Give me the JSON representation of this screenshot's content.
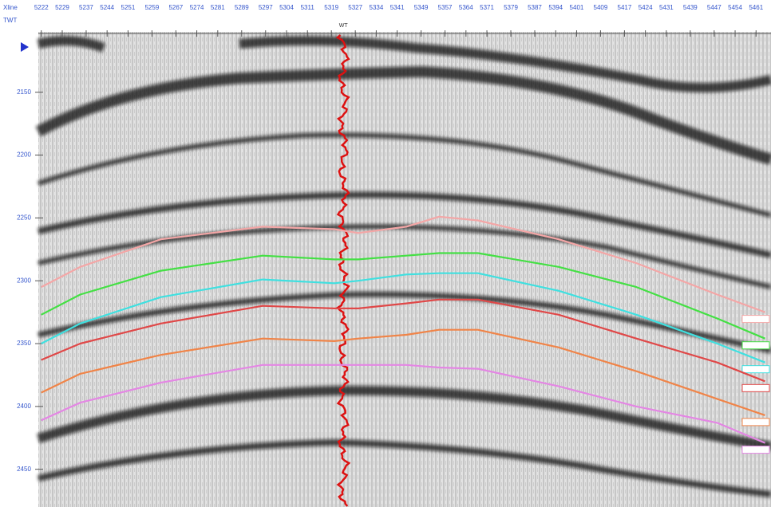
{
  "chart_data": {
    "type": "line",
    "x_label": "Xline",
    "y_label": "TWT",
    "well_label": "WT",
    "well_x": 5323,
    "xlim": [
      5221,
      5466
    ],
    "xticks": [
      5222,
      5229,
      5237,
      5244,
      5251,
      5259,
      5267,
      5274,
      5281,
      5289,
      5297,
      5304,
      5311,
      5319,
      5327,
      5334,
      5341,
      5349,
      5357,
      5364,
      5371,
      5379,
      5387,
      5394,
      5401,
      5409,
      5417,
      5424,
      5431,
      5439,
      5447,
      5454,
      5461
    ],
    "ylim": [
      2102,
      2480
    ],
    "y_reversed": true,
    "yticks": [
      2150,
      2200,
      2250,
      2300,
      2350,
      2400,
      2450
    ],
    "x": [
      5222,
      5235,
      5262,
      5296,
      5320,
      5328,
      5344,
      5355,
      5368,
      5395,
      5421,
      5448,
      5464
    ],
    "series": [
      {
        "color": "#f4a6a6",
        "values": [
          2305,
          2289,
          2267,
          2257,
          2259,
          2262,
          2257,
          2249,
          2252,
          2267,
          2286,
          2311,
          2325
        ]
      },
      {
        "color": "#44e044",
        "values": [
          2327,
          2311,
          2292,
          2280,
          2283,
          2283,
          2280,
          2278,
          2278,
          2289,
          2305,
          2330,
          2346
        ]
      },
      {
        "color": "#3fe0e0",
        "values": [
          2350,
          2334,
          2313,
          2299,
          2302,
          2300,
          2295,
          2294,
          2294,
          2308,
          2327,
          2350,
          2365
        ]
      },
      {
        "color": "#e04848",
        "values": [
          2363,
          2350,
          2334,
          2320,
          2322,
          2322,
          2318,
          2315,
          2315,
          2327,
          2346,
          2365,
          2380
        ]
      },
      {
        "color": "#f08448",
        "values": [
          2389,
          2374,
          2359,
          2346,
          2348,
          2346,
          2343,
          2339,
          2339,
          2353,
          2372,
          2394,
          2407
        ]
      },
      {
        "color": "#e486e4",
        "values": [
          2411,
          2397,
          2381,
          2367,
          2367,
          2367,
          2367,
          2369,
          2370,
          2384,
          2400,
          2413,
          2429
        ]
      }
    ]
  }
}
